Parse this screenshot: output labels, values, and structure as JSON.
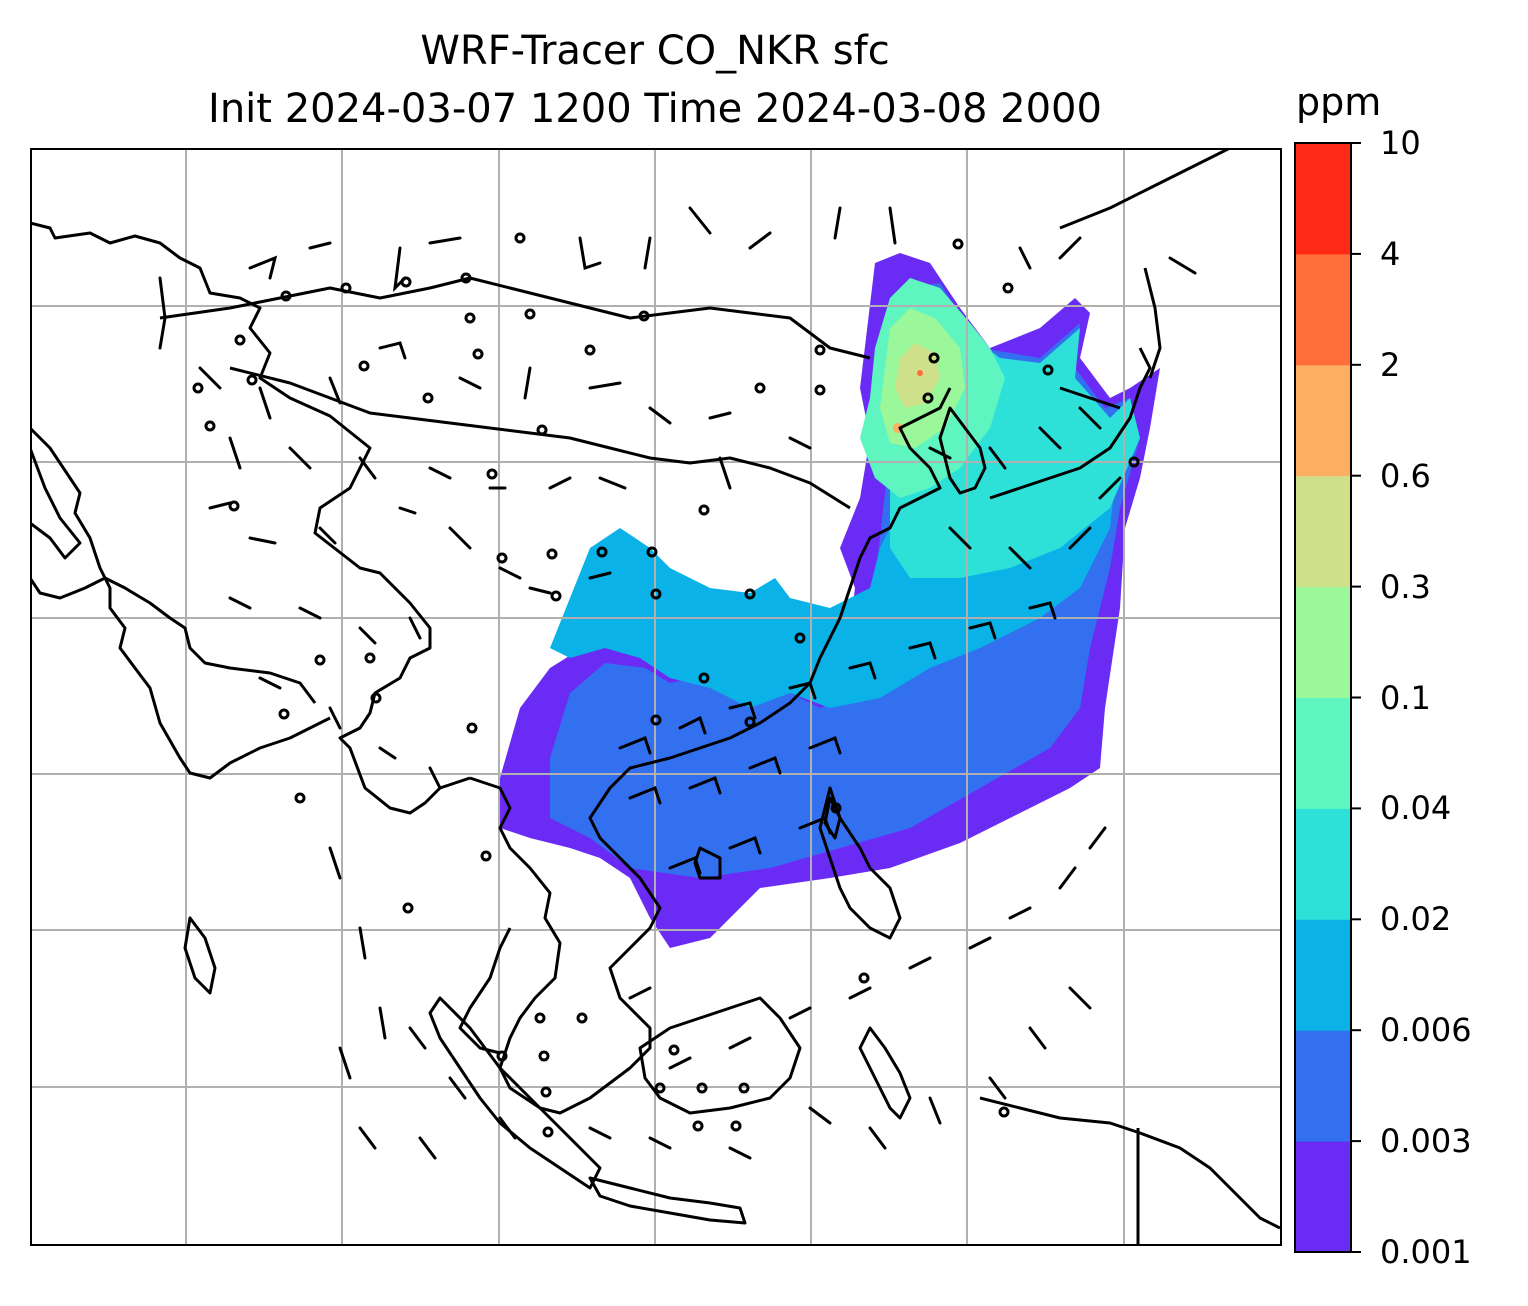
{
  "title": {
    "line1": "WRF-Tracer CO_NKR sfc",
    "line2": "Init 2024-03-07 1200 Time 2024-03-08 2000"
  },
  "colorbar": {
    "unit": "ppm",
    "levels": [
      "0.001",
      "0.003",
      "0.006",
      "0.02",
      "0.04",
      "0.1",
      "0.3",
      "0.6",
      "2",
      "4",
      "10"
    ],
    "colors": [
      "#6a2cf5",
      "#3370f0",
      "#0ab2e8",
      "#2de0d8",
      "#5ff5c0",
      "#9af79a",
      "#cfe08a",
      "#fcaf60",
      "#ff6d3b",
      "#ff2a16"
    ]
  },
  "map": {
    "gridlines": true,
    "gridline_color": "#b0b0b0",
    "coastline_color": "#000000",
    "barb_color": "#000000"
  }
}
